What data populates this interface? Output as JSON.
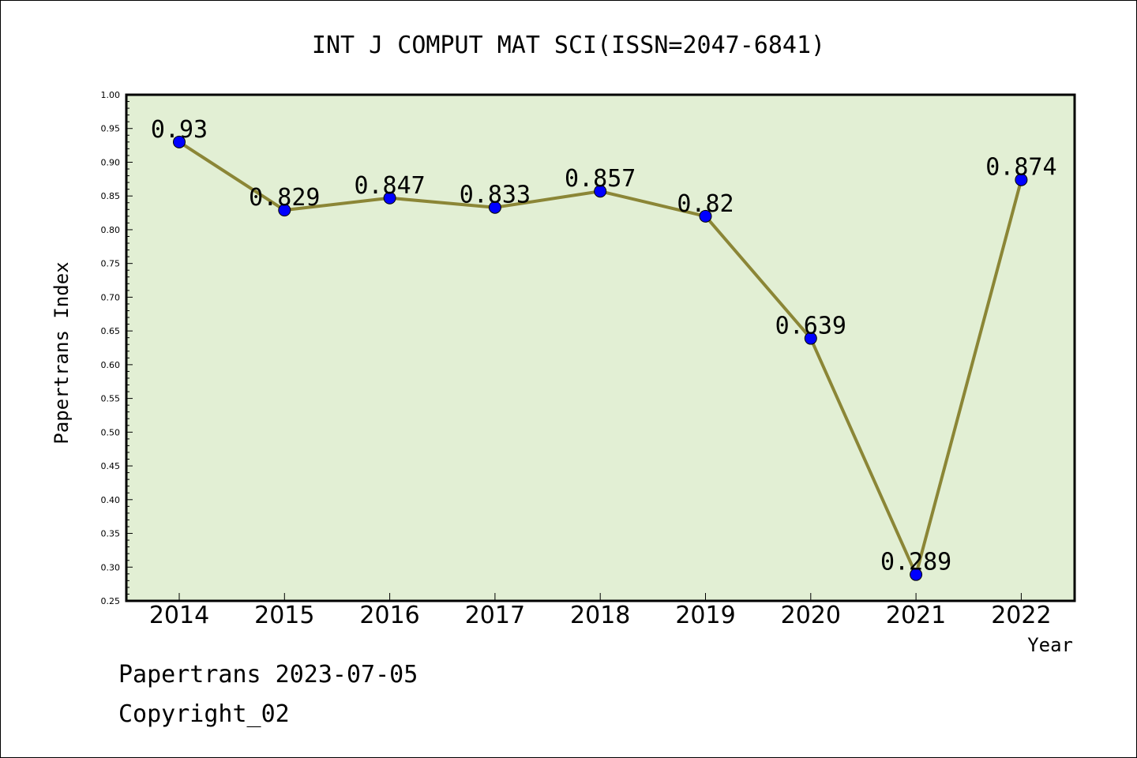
{
  "chart_data": {
    "type": "line",
    "title": "INT J COMPUT MAT SCI(ISSN=2047-6841)",
    "xlabel": "Year",
    "ylabel": "Papertrans Index",
    "categories": [
      "2014",
      "2015",
      "2016",
      "2017",
      "2018",
      "2019",
      "2020",
      "2021",
      "2022"
    ],
    "values": [
      0.93,
      0.829,
      0.847,
      0.833,
      0.857,
      0.82,
      0.639,
      0.289,
      0.874
    ],
    "data_labels": [
      "0.93",
      "0.829",
      "0.847",
      "0.833",
      "0.857",
      "0.82",
      "0.639",
      "0.289",
      "0.874"
    ],
    "ylim": [
      0.25,
      1.0
    ],
    "yticks": [
      "0.25",
      "0.30",
      "0.35",
      "0.40",
      "0.45",
      "0.50",
      "0.55",
      "0.60",
      "0.65",
      "0.70",
      "0.75",
      "0.80",
      "0.85",
      "0.90",
      "0.95",
      "1.00"
    ],
    "grid": false,
    "legend": "none",
    "colors": {
      "plot_background": "#e2efd4",
      "line": "#8b8636",
      "marker": "#0000ff"
    }
  },
  "footer": {
    "date_line": "Papertrans 2023-07-05",
    "copyright": "Copyright_02"
  }
}
